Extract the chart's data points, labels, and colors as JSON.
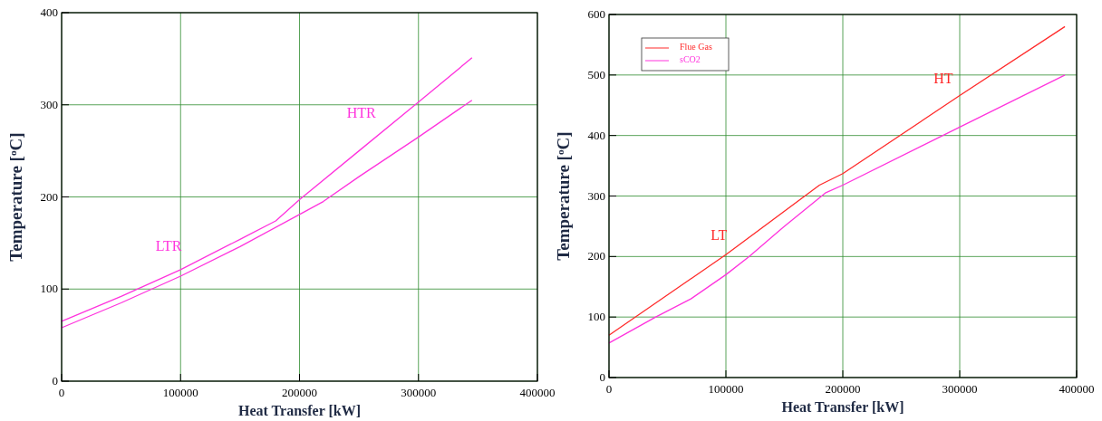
{
  "chart_data": [
    {
      "type": "line",
      "xlabel": "Heat Transfer [kW]",
      "ylabel": "Temperature [$^{o}$C]",
      "xlim": [
        0,
        400000
      ],
      "ylim": [
        0,
        400
      ],
      "xticks": [
        0,
        100000,
        200000,
        300000,
        400000
      ],
      "yticks": [
        0,
        100,
        200,
        300,
        400
      ],
      "grid": true,
      "legend": false,
      "annotations": [
        "LTR",
        "HTR"
      ],
      "series": [
        {
          "color": "#ff33dd",
          "x": [
            0,
            50000,
            100000,
            150000,
            180000,
            200000,
            250000,
            300000,
            345000
          ],
          "values": [
            65,
            92,
            121,
            154,
            174,
            197,
            250,
            303,
            351
          ]
        },
        {
          "color": "#ff33dd",
          "x": [
            0,
            50000,
            100000,
            150000,
            200000,
            220000,
            250000,
            300000,
            345000
          ],
          "values": [
            58,
            85,
            114,
            146,
            181,
            195,
            222,
            265,
            305
          ]
        }
      ]
    },
    {
      "type": "line",
      "xlabel": "Heat Transfer [kW]",
      "ylabel": "Temperature [$^{o}$C]",
      "xlim": [
        0,
        400000
      ],
      "ylim": [
        0,
        600
      ],
      "xticks": [
        0,
        100000,
        200000,
        300000,
        400000
      ],
      "yticks": [
        0,
        100,
        200,
        300,
        400,
        500,
        600
      ],
      "grid": true,
      "legend": "top left",
      "annotations": [
        "LT",
        "HT"
      ],
      "series": [
        {
          "name": "Flue Gas",
          "color": "#ff2a2a",
          "x": [
            0,
            100000,
            180000,
            200000,
            300000,
            390000
          ],
          "values": [
            70,
            203,
            318,
            337,
            466,
            580
          ]
        },
        {
          "name": "sCO2",
          "color": "#ff33dd",
          "x": [
            0,
            40000,
            70000,
            100000,
            120000,
            150000,
            185000,
            200000,
            300000,
            390000
          ],
          "values": [
            57,
            100,
            130,
            170,
            200,
            250,
            305,
            318,
            414,
            500
          ]
        }
      ]
    }
  ]
}
